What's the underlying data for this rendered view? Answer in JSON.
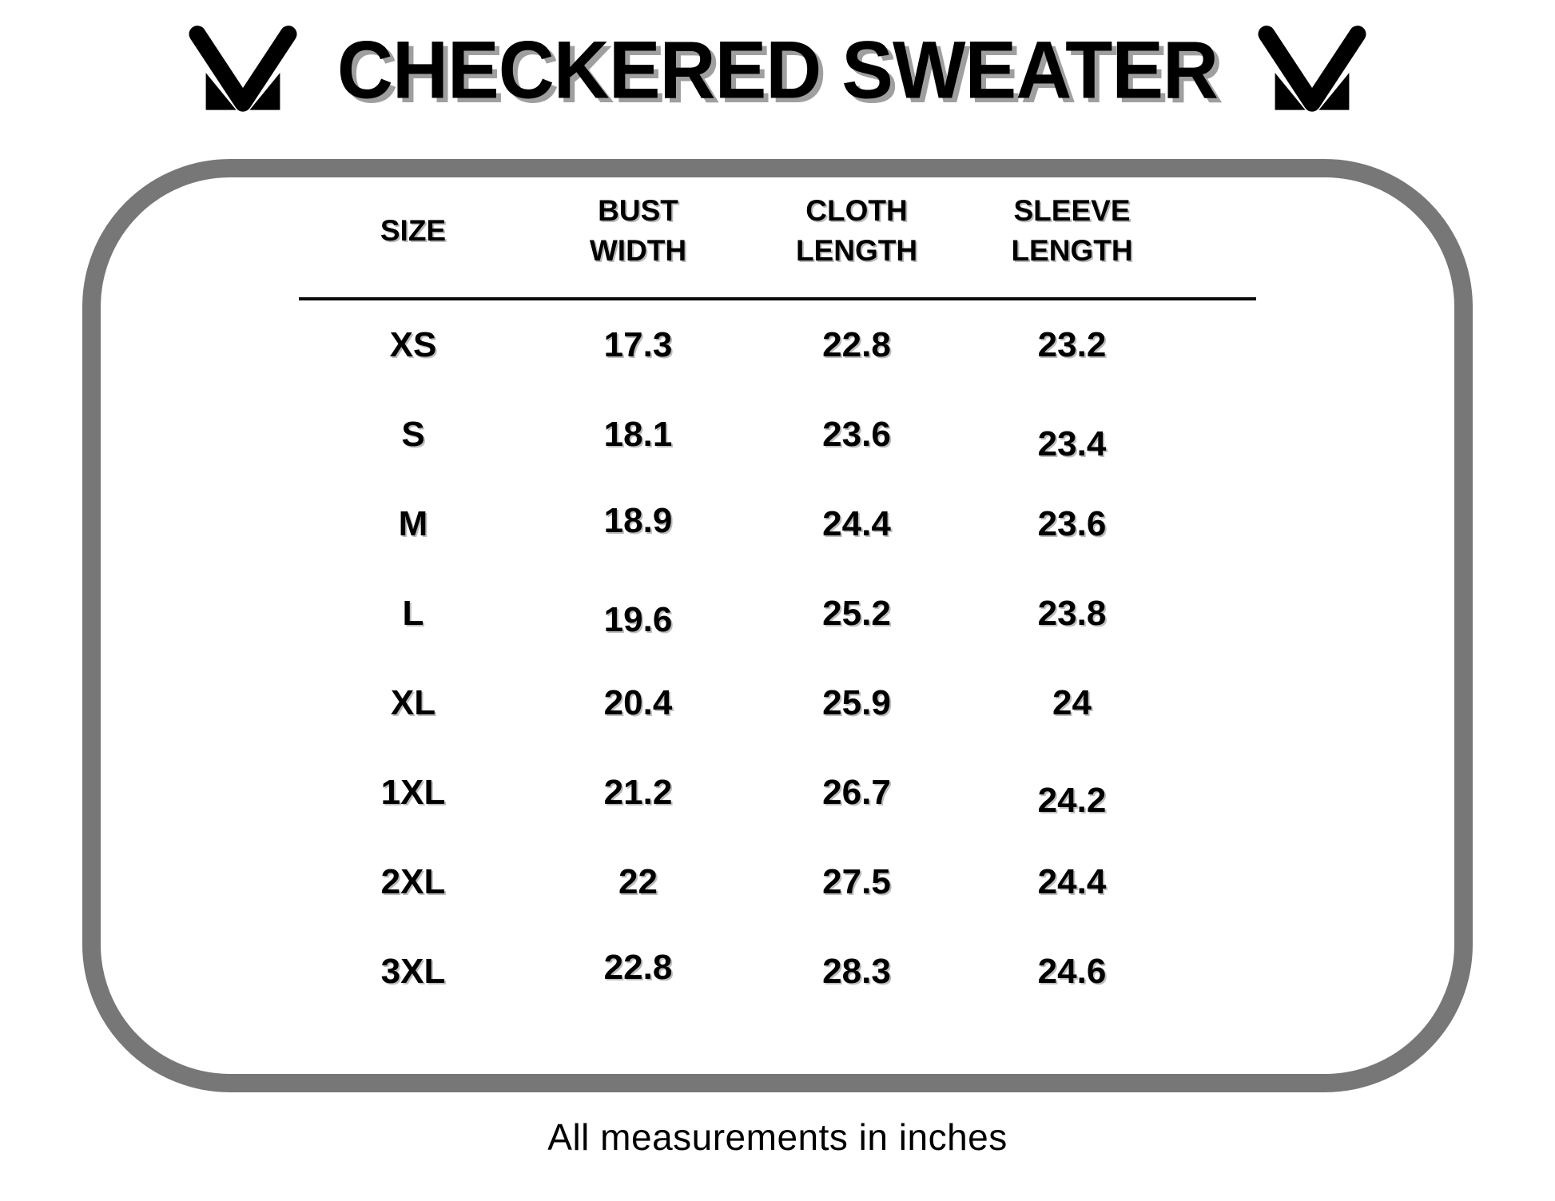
{
  "header": {
    "title": "CHECKERED SWEATER",
    "logo": "brand-m-monogram"
  },
  "chart_data": {
    "type": "table",
    "title": "CHECKERED SWEATER",
    "columns": [
      "SIZE",
      "BUST WIDTH",
      "CLOTH LENGTH",
      "SLEEVE LENGTH"
    ],
    "rows": [
      [
        "XS",
        17.3,
        22.8,
        23.2
      ],
      [
        "S",
        18.1,
        23.6,
        23.4
      ],
      [
        "M",
        18.9,
        24.4,
        23.6
      ],
      [
        "L",
        19.6,
        25.2,
        23.8
      ],
      [
        "XL",
        20.4,
        25.9,
        24
      ],
      [
        "1XL",
        21.2,
        26.7,
        24.2
      ],
      [
        "2XL",
        22,
        27.5,
        24.4
      ],
      [
        "3XL",
        22.8,
        28.3,
        24.6
      ]
    ],
    "note": "All measurements in inches",
    "units": "inches",
    "legend_position": "none",
    "grid": "header-underline-only"
  },
  "table": {
    "header_lines": [
      {
        "line1": "SIZE",
        "line2": ""
      },
      {
        "line1": "BUST",
        "line2": "WIDTH"
      },
      {
        "line1": "CLOTH",
        "line2": "LENGTH"
      },
      {
        "line1": "SLEEVE",
        "line2": "LENGTH"
      }
    ]
  },
  "footer": {
    "note": "All measurements in inches"
  },
  "colors": {
    "text": "#000000",
    "panel_border": "#777777",
    "title_shadow": "#9f9f9f",
    "header_rule": "#0a0a0a"
  }
}
